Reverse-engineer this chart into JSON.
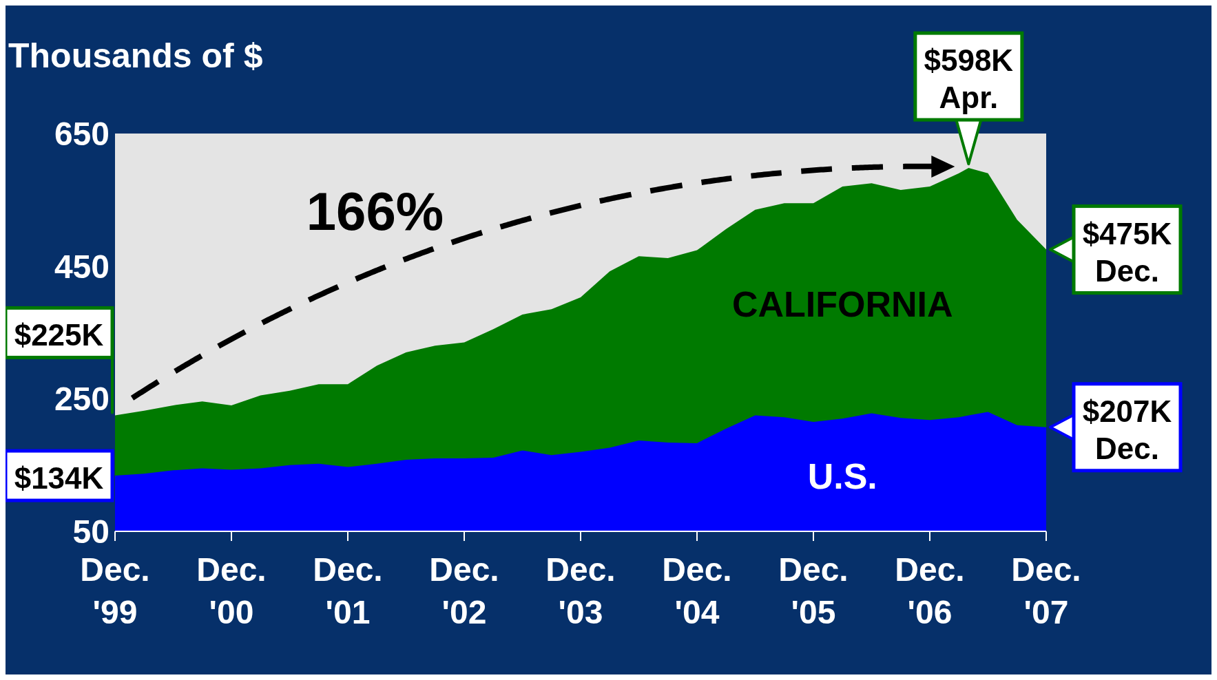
{
  "chart_data": {
    "type": "area",
    "ylabel": "Thousands of $",
    "x": [
      "1999-12",
      "2000-03",
      "2000-06",
      "2000-09",
      "2000-12",
      "2001-03",
      "2001-06",
      "2001-09",
      "2001-12",
      "2002-03",
      "2002-06",
      "2002-09",
      "2002-12",
      "2003-03",
      "2003-06",
      "2003-09",
      "2003-12",
      "2004-03",
      "2004-06",
      "2004-09",
      "2004-12",
      "2005-03",
      "2005-06",
      "2005-09",
      "2005-12",
      "2006-03",
      "2006-06",
      "2006-09",
      "2006-12",
      "2007-03",
      "2007-04",
      "2007-06",
      "2007-09",
      "2007-12"
    ],
    "series": [
      {
        "name": "CALIFORNIA",
        "color": "#007a00",
        "values": [
          225,
          232,
          240,
          246,
          240,
          255,
          262,
          272,
          272,
          300,
          320,
          330,
          335,
          355,
          377,
          385,
          403,
          442,
          465,
          462,
          474,
          506,
          535,
          545,
          545,
          570,
          575,
          565,
          570,
          590,
          598,
          590,
          520,
          475
        ]
      },
      {
        "name": "U.S.",
        "color": "#0000ff",
        "values": [
          134,
          137,
          142,
          145,
          143,
          145,
          150,
          152,
          147,
          152,
          158,
          160,
          160,
          161,
          172,
          165,
          170,
          176,
          187,
          184,
          183,
          205,
          225,
          222,
          215,
          220,
          228,
          221,
          218,
          222,
          225,
          230,
          210,
          207
        ]
      }
    ],
    "xlim": [
      "1999-12",
      "2007-12"
    ],
    "xticks": [
      {
        "value": "1999-12",
        "label": "Dec. '99"
      },
      {
        "value": "2000-12",
        "label": "Dec. '00"
      },
      {
        "value": "2001-12",
        "label": "Dec. '01"
      },
      {
        "value": "2002-12",
        "label": "Dec. '02"
      },
      {
        "value": "2003-12",
        "label": "Dec. '03"
      },
      {
        "value": "2004-12",
        "label": "Dec. '04"
      },
      {
        "value": "2005-12",
        "label": "Dec. '05"
      },
      {
        "value": "2006-12",
        "label": "Dec. '06"
      },
      {
        "value": "2007-12",
        "label": "Dec. '07"
      }
    ],
    "ylim": [
      50,
      650
    ],
    "yticks": [
      50,
      250,
      450,
      650
    ],
    "annotations": [
      "166%",
      {
        "text": "$225K",
        "x": "1999-12",
        "y": 225
      },
      {
        "text": "$134K",
        "x": "1999-12",
        "y": 134
      },
      {
        "text": "$598K Apr.",
        "x": "2007-04",
        "y": 598
      },
      {
        "text": "$475K Dec.",
        "x": "2007-12",
        "y": 475
      },
      {
        "text": "$207K Dec.",
        "x": "2007-12",
        "y": 207
      }
    ]
  }
}
